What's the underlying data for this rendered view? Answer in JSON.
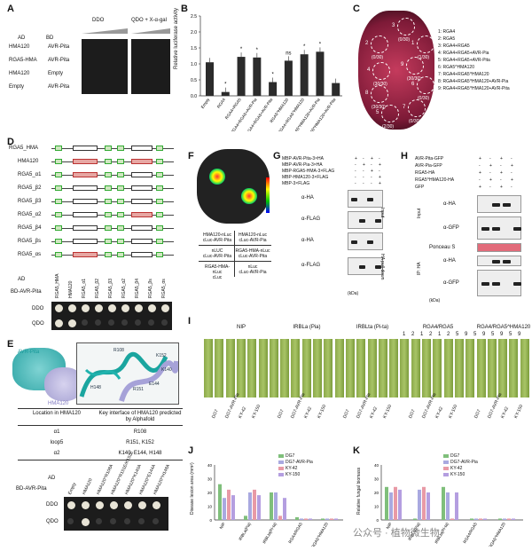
{
  "panels": {
    "A": "A",
    "B": "B",
    "C": "C",
    "D": "D",
    "E": "E",
    "F": "F",
    "G": "G",
    "H": "H",
    "I": "I",
    "J": "J",
    "K": "K"
  },
  "A": {
    "col_ad": "AD",
    "col_bd": "BD",
    "ddo": "DDO",
    "qdo": "QDO + X-α-gal",
    "rows": [
      {
        "ad": "HMA120",
        "bd": "AVR-Pita"
      },
      {
        "ad": "RGA5-HMA",
        "bd": "AVR-Pita"
      },
      {
        "ad": "HMA120",
        "bd": "Empty"
      },
      {
        "ad": "Empty",
        "bd": "AVR-Pita"
      }
    ]
  },
  "B": {
    "ylabel": "Relative luciferase activity",
    "sig": [
      "*",
      "*",
      "*",
      "*",
      "ns",
      "*",
      "*"
    ]
  },
  "chart_data": {
    "type": "bar",
    "title": "",
    "xlabel": "",
    "ylabel": "Relative luciferase activity",
    "ylim": [
      0,
      2.5
    ],
    "categories": [
      "Empty",
      "RGA4",
      "RGA4+RGA5",
      "RGA4+RGA5+AVR-Pia",
      "RGA4+RGA5+AVR-Pita",
      "RGA5^HMA120",
      "RGA4+RGA5^HMA120",
      "RGA4+RGA5^HMA120+AVR-Pia",
      "RGA4+RGA5^HMA120+AVR-Pita"
    ],
    "values": [
      1.05,
      0.12,
      1.22,
      1.2,
      0.43,
      1.1,
      1.3,
      1.38,
      0.4
    ]
  },
  "C": {
    "legend": [
      "1: RGA4",
      "2: RGA5",
      "3: RGA4+RGA5",
      "4: RGA4+RGA5+AVR-Pia",
      "5: RGA4+RGA5+AVR-Pita",
      "6: RGA5^HMA120",
      "7: RGA4+RGA5^HMA120",
      "8: RGA4+RGA5^HMA120+AVR-Pia",
      "9: RGA4+RGA5^HMA120+AVR-Pita"
    ],
    "spots": [
      {
        "n": "1",
        "c": "(1/30)"
      },
      {
        "n": "2",
        "c": "(0/30)"
      },
      {
        "n": "3",
        "c": "(0/30)"
      },
      {
        "n": "4",
        "c": "(30/30)"
      },
      {
        "n": "5",
        "c": "(2/30)"
      },
      {
        "n": "6",
        "c": "(0/30)"
      },
      {
        "n": "7",
        "c": "(0/30)"
      },
      {
        "n": "8",
        "c": "(30/30)"
      },
      {
        "n": "9",
        "c": "(30/30)"
      }
    ]
  },
  "D": {
    "rows": [
      "RGA5_HMA",
      "HMA120",
      "RGA5_α1",
      "RGA5_β2",
      "RGA5_β3",
      "RGA5_α2",
      "RGA5_β4",
      "RGA5_βs",
      "RGA5_αs"
    ],
    "ad": "AD",
    "bd": "BD-AVR-Pita",
    "ddo": "DDO",
    "qdo": "QDO",
    "cols": [
      "RGA5_HMA",
      "HMA120",
      "RGA5_α1",
      "RGA5_β2",
      "RGA5_β3",
      "RGA5_α2",
      "RGA5_β4",
      "RGA5_βs",
      "RGA5_αs"
    ]
  },
  "E": {
    "avr": "AVR-Pita",
    "hma": "HMA120",
    "tbl_h1": "Location in HMA120",
    "tbl_h2": "Key interface of HMA120 predicted by Alphafold",
    "tbl": [
      [
        "α1",
        "R108"
      ],
      [
        "loop5",
        "R151, K152"
      ],
      [
        "α2",
        "K140, E144, H148"
      ]
    ],
    "ad": "AD",
    "bd": "BD-AVR-Pita",
    "ddo": "DDO",
    "qdo": "QDO",
    "cols": [
      "Empty",
      "HMA120",
      "HMA120^R108A",
      "HMA120^R151E/K152E",
      "HMA120^K140A",
      "HMA120^E144A",
      "HMA120^H148A"
    ],
    "res": [
      "R108",
      "K152",
      "H148",
      "E144",
      "K140",
      "R151"
    ]
  },
  "F": {
    "q1": "HMA120-nLuc\ncLuc-AVR-Pita",
    "q2": "HMA120-nLuc\ncLuc-AVR-Pia",
    "q3": "nLUC\ncLuc-AVR-Pita",
    "q4": "RGA5-HMA-nLuc\ncLuc-AVR-Pita",
    "q5": "RGA5-HMA-nLuc\ncLuc",
    "q6": "nLuc\ncLuc-AVR-Pia"
  },
  "G": {
    "rows": [
      "MBP-AVR-Pita-3×HA",
      "MBP-AVR-Pia-3×HA",
      "MBP-RGA5-HMA-3×FLAG",
      "MBP-HMA120-3×FLAG",
      "MBP-3×FLAG"
    ],
    "blots": [
      "α-HA",
      "α-FLAG",
      "α-HA",
      "α-FLAG"
    ],
    "input": "Input",
    "pd": "HA pull-down",
    "kda": "(kDa)"
  },
  "H": {
    "rows": [
      "AVR-Pita-GFP",
      "AVR-Pia-GFP",
      "RGA5-HA",
      "RGA5^HMA120-HA",
      "GFP"
    ],
    "blots": [
      "α-HA",
      "α-GFP",
      "Ponceau S",
      "α-HA",
      "α-GFP"
    ],
    "input": "Input",
    "ip": "IP: HA",
    "kda": "(kDa)"
  },
  "I": {
    "groups": [
      "NIP",
      "IRBLa (Pia)",
      "IRBLta (Pi-ta)",
      "RGA4/RGA5",
      "RGA4/RGA5^HMA120"
    ],
    "strains": [
      "DG7",
      "DG7-AVR-Pia",
      "KY-42",
      "KY-150"
    ],
    "nums": [
      "1",
      "2",
      "1",
      "2",
      "1",
      "2",
      "5",
      "9",
      "5",
      "9",
      "5",
      "9",
      "5",
      "9"
    ]
  },
  "J": {
    "ylabel": "Disease lesion area (mm²)",
    "legend": [
      "DG7",
      "DG7-AVR-Pia",
      "KY-42",
      "KY-150"
    ]
  },
  "K": {
    "ylabel": "Relative fungal biomass",
    "legend": [
      "DG7",
      "DG7-AVR-Pia",
      "KY-42",
      "KY-150"
    ]
  },
  "xgroups": [
    "NIP",
    "IRBLa(Pia)",
    "IRBLta(Pi-ta)",
    "RGA4/RGA5",
    "RGA4/RGA5^HMA120"
  ],
  "watermark": "公众号 · 植物微生物",
  "colors": {
    "s1": "#7fbf7b",
    "s2": "#a9a9e0",
    "s3": "#e89aa6",
    "s4": "#b49ee0"
  }
}
